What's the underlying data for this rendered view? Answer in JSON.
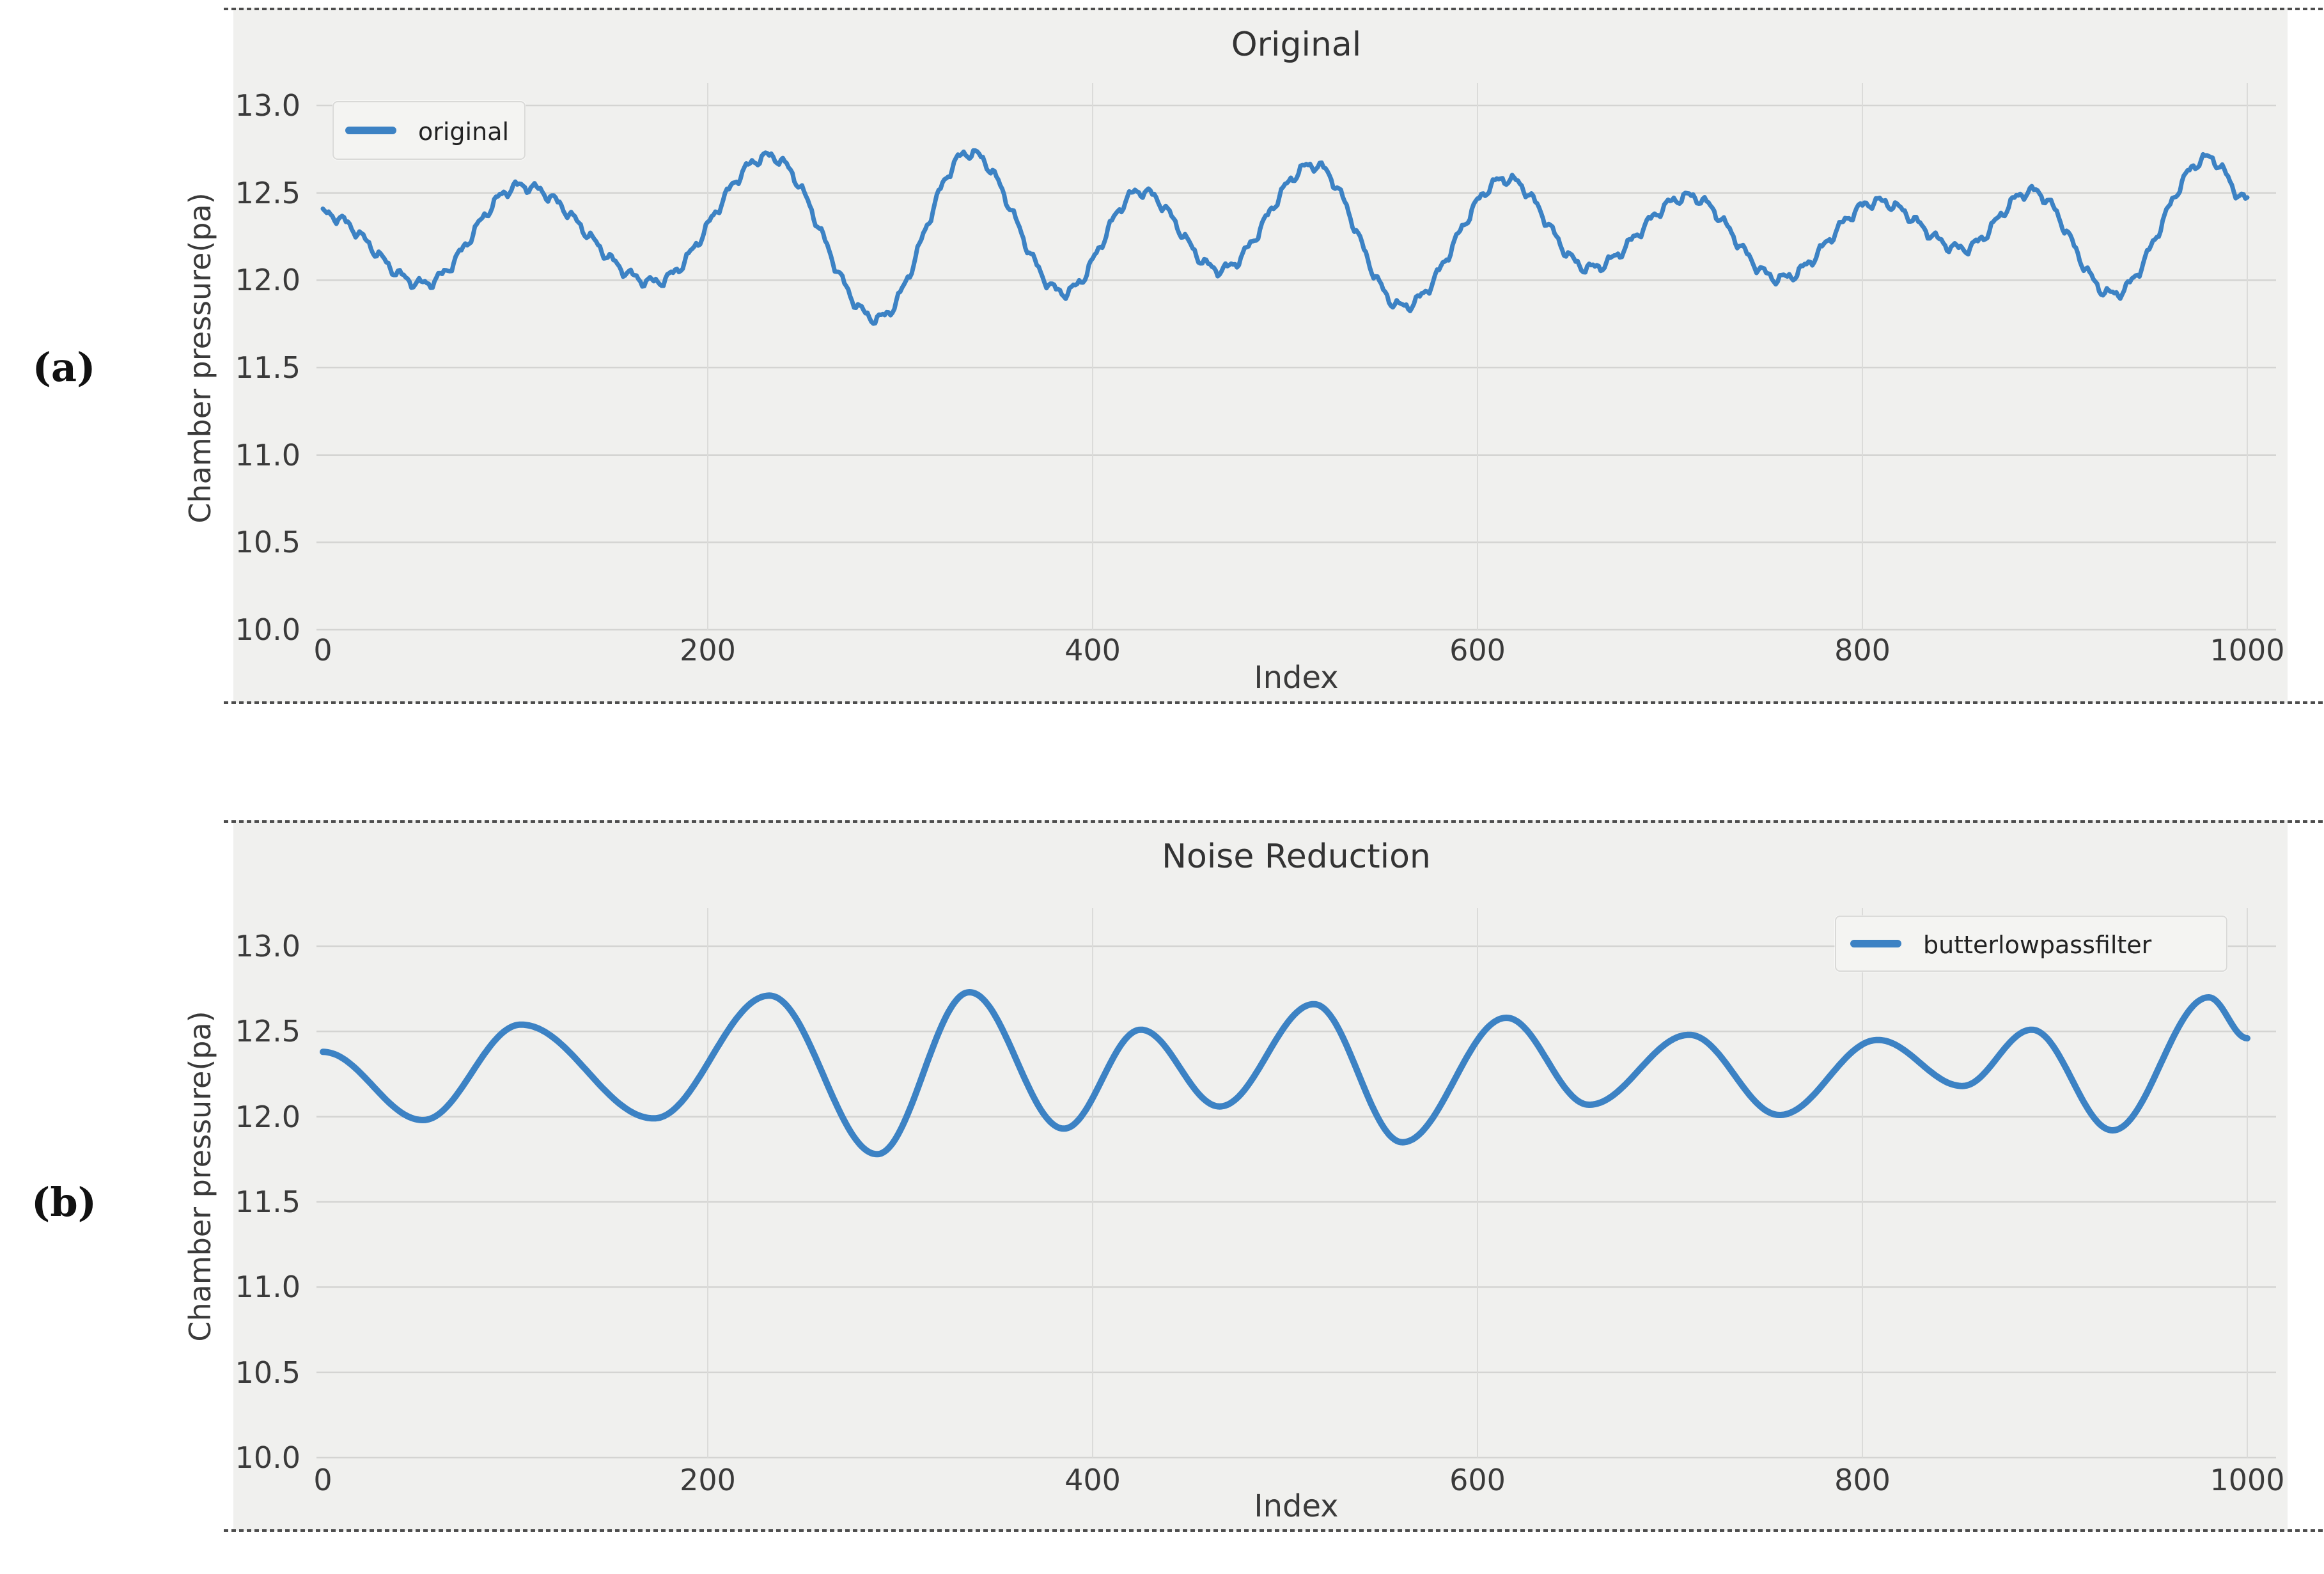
{
  "page": {
    "background": "#ffffff"
  },
  "figure_labels": [
    {
      "label": "(a)"
    },
    {
      "label": "(b)"
    }
  ],
  "colors": {
    "panel_background": "#f0f0ee",
    "grid_horizontal": "#d4d4d2",
    "grid_vertical": "#dbdbd9",
    "tick_text": "#3a3a3a",
    "dashed_border": "#4d4d4d",
    "line_blue": "#3c82c4"
  },
  "chart_data": [
    {
      "type": "line",
      "title": "Original",
      "xlabel": "Index",
      "ylabel": "Chamber pressure(pa)",
      "xlim": [
        0,
        1000
      ],
      "ylim": [
        10.0,
        13.0
      ],
      "xticks": [
        0,
        200,
        400,
        600,
        800,
        1000
      ],
      "xtick_labels": [
        "0",
        "200",
        "400",
        "600",
        "800",
        "1000"
      ],
      "yticks": [
        13.0,
        12.5,
        12.0,
        11.5,
        11.0,
        10.5,
        10.0
      ],
      "ytick_labels": [
        "13.0",
        "12.5",
        "12.0",
        "11.5",
        "11.0",
        "10.5",
        "10.0"
      ],
      "grid": true,
      "legend": {
        "label": "original",
        "position": "upper-left"
      },
      "line_color": "#3c82c4",
      "line_width": 7,
      "series": {
        "name": "original",
        "keypoints": [
          [
            0,
            12.38
          ],
          [
            52,
            11.98
          ],
          [
            103,
            12.54
          ],
          [
            172,
            11.99
          ],
          [
            232,
            12.71
          ],
          [
            288,
            11.78
          ],
          [
            336,
            12.73
          ],
          [
            385,
            11.93
          ],
          [
            425,
            12.51
          ],
          [
            466,
            12.06
          ],
          [
            515,
            12.66
          ],
          [
            561,
            11.85
          ],
          [
            615,
            12.58
          ],
          [
            658,
            12.07
          ],
          [
            710,
            12.48
          ],
          [
            757,
            12.01
          ],
          [
            808,
            12.45
          ],
          [
            852,
            12.18
          ],
          [
            888,
            12.51
          ],
          [
            930,
            11.92
          ],
          [
            980,
            12.7
          ],
          [
            1000,
            12.46
          ]
        ],
        "noise_components": [
          {
            "amp": 0.024,
            "freq": 0.63,
            "phase": 0.7
          },
          {
            "amp": 0.012,
            "freq": 1.26,
            "phase": 2.3
          },
          {
            "amp": 0.006,
            "freq": 2.4,
            "phase": 0.9
          }
        ]
      }
    },
    {
      "type": "line",
      "title": "Noise Reduction",
      "xlabel": "Index",
      "ylabel": "Chamber pressure(pa)",
      "xlim": [
        0,
        1000
      ],
      "ylim": [
        10.0,
        13.0
      ],
      "xticks": [
        0,
        200,
        400,
        600,
        800,
        1000
      ],
      "xtick_labels": [
        "0",
        "200",
        "400",
        "600",
        "800",
        "1000"
      ],
      "yticks": [
        13.0,
        12.5,
        12.0,
        11.5,
        11.0,
        10.5,
        10.0
      ],
      "ytick_labels": [
        "13.0",
        "12.5",
        "12.0",
        "11.5",
        "11.0",
        "10.5",
        "10.0"
      ],
      "grid": true,
      "legend": {
        "label": "butterlowpassfilter",
        "position": "upper-right"
      },
      "line_color": "#3c82c4",
      "line_width": 10,
      "series": {
        "name": "butterlowpassfilter",
        "keypoints": [
          [
            0,
            12.38
          ],
          [
            52,
            11.98
          ],
          [
            103,
            12.54
          ],
          [
            172,
            11.99
          ],
          [
            232,
            12.71
          ],
          [
            288,
            11.78
          ],
          [
            336,
            12.73
          ],
          [
            385,
            11.93
          ],
          [
            425,
            12.51
          ],
          [
            466,
            12.06
          ],
          [
            515,
            12.66
          ],
          [
            561,
            11.85
          ],
          [
            615,
            12.58
          ],
          [
            658,
            12.07
          ],
          [
            710,
            12.48
          ],
          [
            757,
            12.01
          ],
          [
            808,
            12.45
          ],
          [
            852,
            12.18
          ],
          [
            888,
            12.51
          ],
          [
            930,
            11.92
          ],
          [
            980,
            12.7
          ],
          [
            1000,
            12.46
          ]
        ],
        "noise_components": []
      }
    }
  ]
}
